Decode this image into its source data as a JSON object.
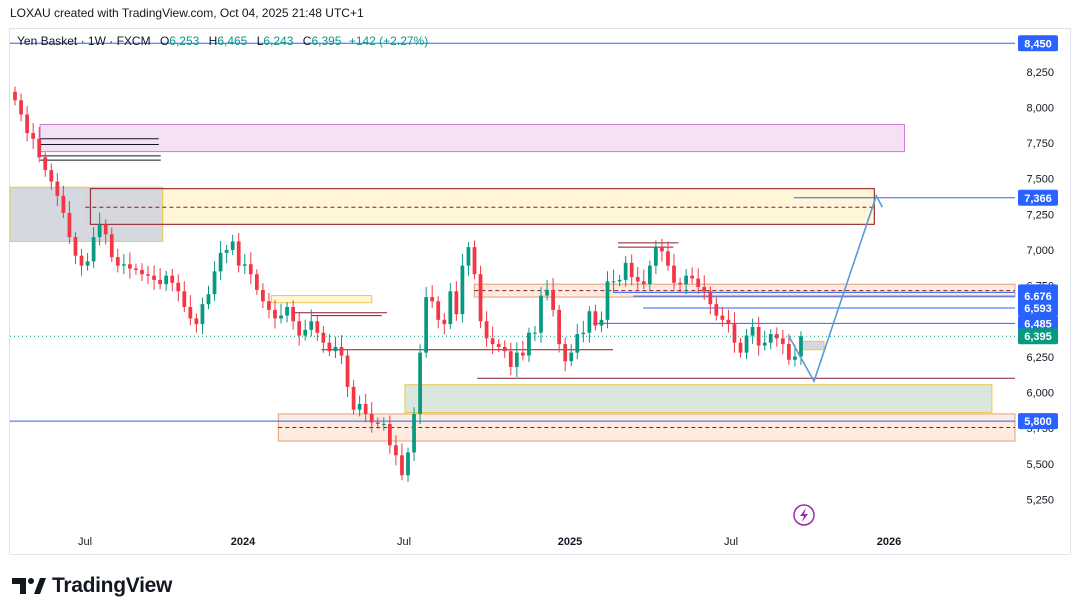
{
  "header": {
    "text": "LOXAU created with TradingView.com, Oct 04, 2025 21:48 UTC+1"
  },
  "legend": {
    "symbol": "Yen Basket · 1W · FXCM",
    "open_label": "O",
    "open": "6,253",
    "high_label": "H",
    "high": "6,465",
    "low_label": "L",
    "low": "6,243",
    "close_label": "C",
    "close": "6,395",
    "change": "+142 (+2.27%)"
  },
  "brand": {
    "name": "TradingView"
  },
  "colors": {
    "up": "#089981",
    "down": "#f23645",
    "accent": "#2962ff",
    "zone_yellow": "#fff5d1",
    "zone_pink": "#f3dcf5",
    "zone_gray": "#d1d4dc",
    "zone_green": "#d3e3d7",
    "zone_peach": "#fbe7d8",
    "projection": "#5b9bd5"
  },
  "chart_data": {
    "type": "candlestick",
    "ylim": [
      5050,
      8550
    ],
    "y_ticks": [
      "8,250",
      "8,000",
      "7,750",
      "7,500",
      "7,250",
      "7,000",
      "6,750",
      "6,500",
      "6,250",
      "6,000",
      "5,750",
      "5,500",
      "5,250"
    ],
    "y_tick_values": [
      8250,
      8000,
      7750,
      7500,
      7250,
      7000,
      6750,
      6500,
      6250,
      6000,
      5750,
      5500,
      5250
    ],
    "x_ticks": [
      "Jul",
      "2024",
      "Jul",
      "2025",
      "Jul",
      "2026"
    ],
    "price_badges": [
      {
        "label": "8,450",
        "value": 8450,
        "color": "#2962ff"
      },
      {
        "label": "7,366",
        "value": 7366,
        "color": "#2962ff"
      },
      {
        "label": "6,703",
        "value": 6703,
        "color": "#2962ff"
      },
      {
        "label": "6,676",
        "value": 6676,
        "color": "#2962ff"
      },
      {
        "label": "6,593",
        "value": 6593,
        "color": "#2962ff"
      },
      {
        "label": "6,485",
        "value": 6485,
        "color": "#2962ff"
      },
      {
        "label": "6,395",
        "value": 6395,
        "color": "#089981"
      },
      {
        "label": "5,800",
        "value": 5800,
        "color": "#2962ff"
      }
    ],
    "closes": [
      8050,
      7950,
      7820,
      7780,
      7650,
      7560,
      7480,
      7380,
      7260,
      7090,
      6960,
      6890,
      6920,
      7090,
      7180,
      7110,
      6950,
      6890,
      6900,
      6870,
      6860,
      6830,
      6820,
      6790,
      6760,
      6820,
      6770,
      6710,
      6600,
      6520,
      6480,
      6620,
      6690,
      6850,
      6980,
      7000,
      7060,
      6890,
      6900,
      6830,
      6720,
      6640,
      6580,
      6520,
      6540,
      6600,
      6500,
      6400,
      6440,
      6500,
      6420,
      6350,
      6290,
      6320,
      6260,
      6040,
      5880,
      5920,
      5850,
      5790,
      5780,
      5780,
      5630,
      5560,
      5420,
      5580,
      5850,
      6280,
      6670,
      6640,
      6510,
      6480,
      6710,
      6550,
      6890,
      7020,
      6830,
      6500,
      6380,
      6340,
      6320,
      6290,
      6180,
      6280,
      6260,
      6420,
      6420,
      6680,
      6720,
      6580,
      6340,
      6220,
      6280,
      6410,
      6420,
      6570,
      6470,
      6510,
      6780,
      6780,
      6790,
      6910,
      6810,
      6780,
      6760,
      6890,
      7020,
      6990,
      6890,
      6770,
      6760,
      6820,
      6800,
      6740,
      6710,
      6620,
      6540,
      6510,
      6480,
      6350,
      6280,
      6400,
      6460,
      6330,
      6350,
      6410,
      6380,
      6340,
      6230,
      6253,
      6395
    ],
    "zones": [
      {
        "name": "top-resistance",
        "x0": 0.03,
        "x1": 0.89,
        "y0": 7880,
        "y1": 7690,
        "kind": "pink"
      },
      {
        "name": "upper-supply",
        "x0": 0.075,
        "x1": 0.86,
        "y0": 7430,
        "y1": 7180,
        "kind": "yellow"
      },
      {
        "name": "left-block",
        "x0": 0.0,
        "x1": 0.152,
        "y0": 7440,
        "y1": 7060,
        "kind": "gray"
      },
      {
        "name": "mid-supply",
        "x0": 0.462,
        "x1": 1.0,
        "y0": 6760,
        "y1": 6670,
        "kind": "peach"
      },
      {
        "name": "demand-green",
        "x0": 0.393,
        "x1": 0.977,
        "y0": 6055,
        "y1": 5860,
        "kind": "green"
      },
      {
        "name": "lower-demand",
        "x0": 0.267,
        "x1": 1.0,
        "y0": 5850,
        "y1": 5660,
        "kind": "peach"
      },
      {
        "name": "small-yellow",
        "x0": 0.26,
        "x1": 0.36,
        "y0": 6680,
        "y1": 6630,
        "kind": "yellow"
      },
      {
        "name": "tiny-gray",
        "x0": 0.787,
        "x1": 0.81,
        "y0": 6360,
        "y1": 6300,
        "kind": "gray"
      }
    ],
    "projection": [
      [
        6395,
        0.775
      ],
      [
        6080,
        0.8
      ],
      [
        7380,
        0.862
      ],
      [
        7300,
        0.868
      ]
    ]
  }
}
